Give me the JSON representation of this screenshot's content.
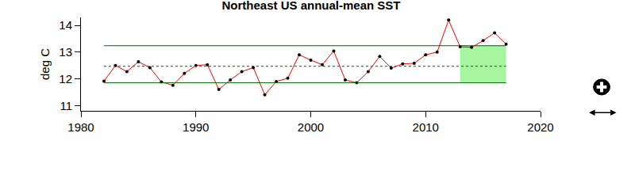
{
  "chart_data": {
    "type": "line",
    "title": "Northeast US annual-mean SST",
    "y_label": "deg C",
    "x": [
      1982,
      1983,
      1984,
      1985,
      1986,
      1987,
      1988,
      1989,
      1990,
      1991,
      1992,
      1993,
      1994,
      1995,
      1996,
      1997,
      1998,
      1999,
      2000,
      2001,
      2002,
      2003,
      2004,
      2005,
      2006,
      2007,
      2008,
      2009,
      2010,
      2011,
      2012,
      2013,
      2014,
      2015,
      2016,
      2017
    ],
    "values": [
      11.91,
      12.5,
      12.27,
      12.64,
      12.42,
      11.88,
      11.76,
      12.2,
      12.5,
      12.53,
      11.6,
      11.96,
      12.27,
      12.42,
      11.4,
      11.9,
      12.02,
      12.9,
      12.7,
      12.53,
      13.04,
      11.96,
      11.85,
      12.27,
      12.84,
      12.4,
      12.56,
      12.58,
      12.9,
      13.0,
      14.2,
      13.2,
      13.18,
      13.43,
      13.72,
      13.3
    ],
    "color": "red",
    "marker": "circle",
    "mean": 12.47,
    "upper": 13.24,
    "lower": 11.85,
    "highlight_x": [
      2013,
      2017
    ],
    "xlim": [
      1980,
      2020
    ],
    "xticks": [
      1980,
      1990,
      2000,
      2010,
      2020
    ],
    "ylim": [
      10.8,
      14.3
    ],
    "yticks": [
      11,
      12,
      13,
      14
    ],
    "grid": false
  }
}
